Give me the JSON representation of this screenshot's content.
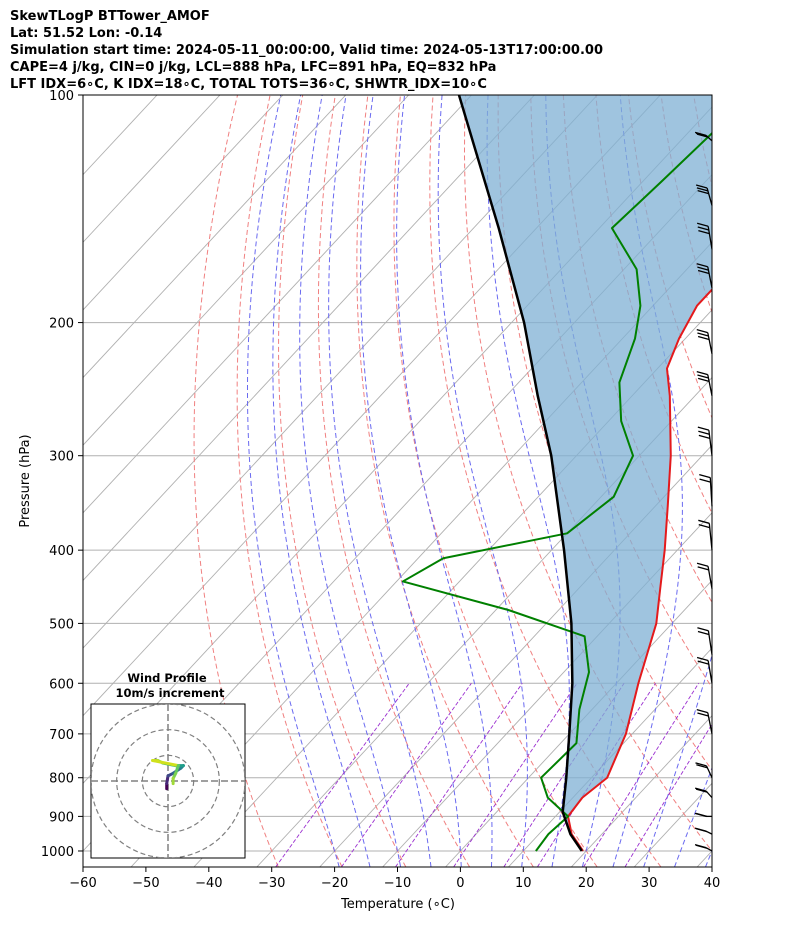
{
  "header": {
    "line1": "SkewTLogP BTTower_AMOF",
    "line2": "Lat: 51.52   Lon: -0.14",
    "line3": "Simulation start time: 2024-05-11_00:00:00, Valid time: 2024-05-13T17:00:00.00",
    "line4": "CAPE=4 j/kg, CIN=0 j/kg, LCL=888 hPa, LFC=891 hPa, EQ=832 hPa",
    "line5": "LFT IDX=6∘C, K IDX=18∘C, TOTAL TOTS=36∘C, SHWTR_IDX=10∘C"
  },
  "colors": {
    "temperature": "#e41a1c",
    "dewpoint": "#008000",
    "parcel": "#000000",
    "cape_fill": "#7fb0d4",
    "dry_adiabat": "#f08080",
    "moist_adiabat": "#6a6af0",
    "mixing_ratio": "#9b30d0",
    "isotherm": "#b0b0b0"
  },
  "chart_data": {
    "type": "skewt-logp",
    "xlabel": "Temperature (∘C)",
    "ylabel": "Pressure (hPa)",
    "xlim": [
      -60,
      40
    ],
    "ylim": [
      1050,
      100
    ],
    "yscale": "log",
    "x_ticks": [
      -60,
      -50,
      -40,
      -30,
      -20,
      -10,
      0,
      10,
      20,
      30,
      40
    ],
    "y_ticks": [
      1000,
      900,
      800,
      700,
      600,
      500,
      400,
      300,
      200,
      100
    ],
    "temperature_profile": [
      {
        "p": 1000,
        "t": 19.5
      },
      {
        "p": 950,
        "t": 15.2
      },
      {
        "p": 900,
        "t": 12.0
      },
      {
        "p": 850,
        "t": 11.5
      },
      {
        "p": 800,
        "t": 12.5
      },
      {
        "p": 700,
        "t": 9.0
      },
      {
        "p": 600,
        "t": 3.5
      },
      {
        "p": 500,
        "t": -2.5
      },
      {
        "p": 450,
        "t": -7.0
      },
      {
        "p": 400,
        "t": -12.0
      },
      {
        "p": 350,
        "t": -18.0
      },
      {
        "p": 300,
        "t": -25.0
      },
      {
        "p": 250,
        "t": -34.0
      },
      {
        "p": 230,
        "t": -38.5
      },
      {
        "p": 210,
        "t": -41.0
      },
      {
        "p": 190,
        "t": -43.0
      },
      {
        "p": 170,
        "t": -43.0
      },
      {
        "p": 150,
        "t": -45.0
      },
      {
        "p": 130,
        "t": -51.0
      },
      {
        "p": 115,
        "t": -55.0
      },
      {
        "p": 100,
        "t": -60.0
      }
    ],
    "dewpoint_profile": [
      {
        "p": 1000,
        "t": 12.0
      },
      {
        "p": 950,
        "t": 11.5
      },
      {
        "p": 900,
        "t": 12.0
      },
      {
        "p": 850,
        "t": 6.0
      },
      {
        "p": 800,
        "t": 2.0
      },
      {
        "p": 720,
        "t": 2.5
      },
      {
        "p": 650,
        "t": -2.0
      },
      {
        "p": 580,
        "t": -6.0
      },
      {
        "p": 520,
        "t": -12.0
      },
      {
        "p": 480,
        "t": -28.0
      },
      {
        "p": 440,
        "t": -49.0
      },
      {
        "p": 410,
        "t": -46.0
      },
      {
        "p": 380,
        "t": -30.0
      },
      {
        "p": 340,
        "t": -28.0
      },
      {
        "p": 300,
        "t": -31.0
      },
      {
        "p": 270,
        "t": -38.0
      },
      {
        "p": 240,
        "t": -44.0
      },
      {
        "p": 210,
        "t": -48.0
      },
      {
        "p": 190,
        "t": -52.0
      },
      {
        "p": 170,
        "t": -58.0
      },
      {
        "p": 150,
        "t": -68.0
      },
      {
        "p": 130,
        "t": -67.0
      },
      {
        "p": 110,
        "t": -66.0
      },
      {
        "p": 100,
        "t": -66.0
      }
    ],
    "parcel_profile": [
      {
        "p": 1000,
        "t": 19.3
      },
      {
        "p": 950,
        "t": 15.0
      },
      {
        "p": 888,
        "t": 10.5
      },
      {
        "p": 800,
        "t": 6.0
      },
      {
        "p": 700,
        "t": 0.0
      },
      {
        "p": 600,
        "t": -7.0
      },
      {
        "p": 500,
        "t": -16.0
      },
      {
        "p": 400,
        "t": -28.0
      },
      {
        "p": 300,
        "t": -44.0
      },
      {
        "p": 250,
        "t": -55.0
      },
      {
        "p": 200,
        "t": -68.0
      },
      {
        "p": 150,
        "t": -86.0
      },
      {
        "p": 100,
        "t": -112.0
      }
    ],
    "wind_barbs": [
      {
        "p": 1000,
        "u": 9,
        "v": 1
      },
      {
        "p": 950,
        "u": 10,
        "v": 1
      },
      {
        "p": 900,
        "u": 10,
        "v": 0
      },
      {
        "p": 850,
        "u": 9,
        "v": 2
      },
      {
        "p": 800,
        "u": 7,
        "v": 3
      },
      {
        "p": 700,
        "u": 6,
        "v": 6
      },
      {
        "p": 600,
        "u": 6,
        "v": 7
      },
      {
        "p": 550,
        "u": 6,
        "v": 8
      },
      {
        "p": 450,
        "u": 7,
        "v": 8
      },
      {
        "p": 400,
        "u": 4,
        "v": 8
      },
      {
        "p": 350,
        "u": 3,
        "v": 10
      },
      {
        "p": 300,
        "u": 8,
        "v": 13
      },
      {
        "p": 250,
        "u": 12,
        "v": 12
      },
      {
        "p": 220,
        "u": 12,
        "v": 12
      },
      {
        "p": 180,
        "u": 12,
        "v": 12
      },
      {
        "p": 160,
        "u": 10,
        "v": 12
      },
      {
        "p": 140,
        "u": 14,
        "v": 10
      },
      {
        "p": 115,
        "u": 16,
        "v": 3
      }
    ],
    "hodograph": {
      "title_line1": "Wind Profile",
      "title_line2": "10m/s increment",
      "rings": [
        10,
        20,
        30
      ],
      "limit": 30,
      "points": [
        {
          "u": -0.5,
          "v": -3
        },
        {
          "u": -0.5,
          "v": -1
        },
        {
          "u": 0,
          "v": 2
        },
        {
          "u": 2,
          "v": 3
        },
        {
          "u": 5,
          "v": 5
        },
        {
          "u": 6,
          "v": 6
        },
        {
          "u": 3,
          "v": 6
        },
        {
          "u": -2,
          "v": 7
        },
        {
          "u": -4,
          "v": 8
        },
        {
          "u": -6,
          "v": 8
        },
        {
          "u": 4,
          "v": 6
        },
        {
          "u": 3,
          "v": 3
        },
        {
          "u": 2,
          "v": 1
        },
        {
          "u": 2,
          "v": -1
        }
      ]
    }
  }
}
